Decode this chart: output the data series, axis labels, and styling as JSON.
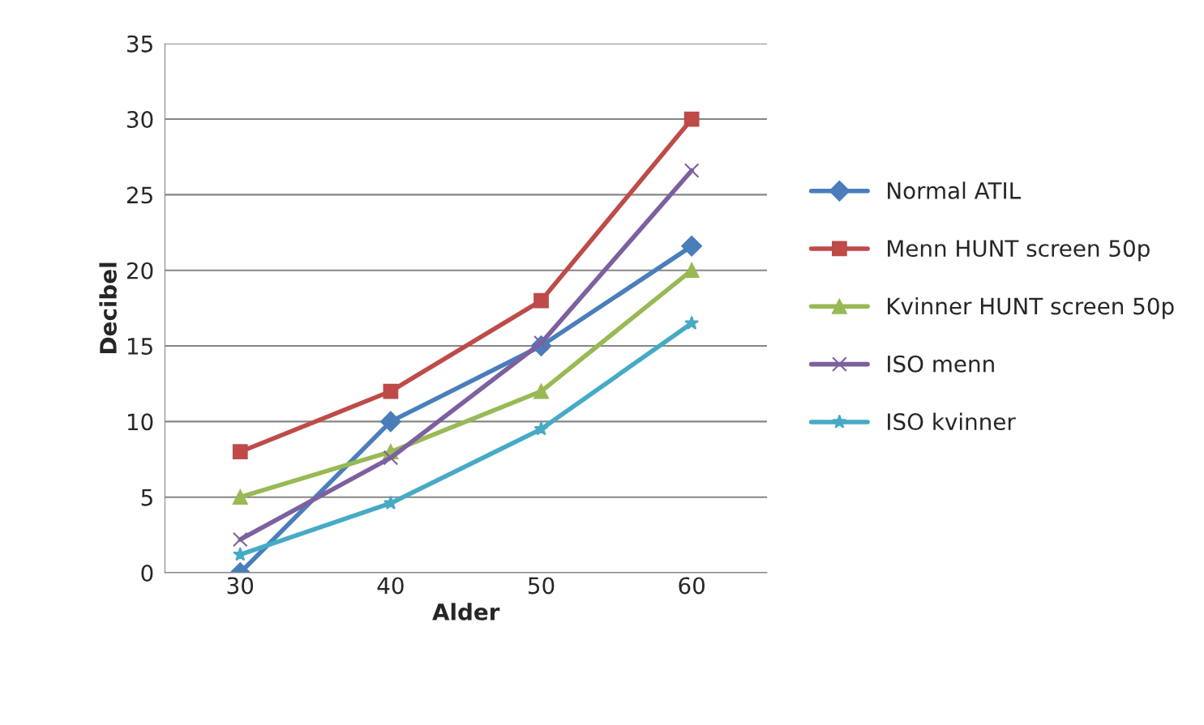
{
  "chart_data": {
    "type": "line",
    "xlabel": "Alder",
    "ylabel": "Decibel",
    "x": [
      30,
      40,
      50,
      60
    ],
    "xlim": [
      25,
      65
    ],
    "xticks": [
      30,
      40,
      50,
      60
    ],
    "ylim": [
      0,
      35
    ],
    "yticks": [
      0,
      5,
      10,
      15,
      20,
      25,
      30,
      35
    ],
    "grid": "y",
    "legend": "right",
    "line_style": "solid",
    "series": [
      {
        "name": "Normal ATIL",
        "color": "#4a7ebb",
        "marker": "diamond",
        "values": [
          0,
          10,
          15,
          21.6
        ]
      },
      {
        "name": "Menn HUNT screen 50p",
        "color": "#be4b48",
        "marker": "square",
        "values": [
          8,
          12,
          18,
          30
        ]
      },
      {
        "name": "Kvinner HUNT screen 50p",
        "color": "#98b954",
        "marker": "triangle",
        "values": [
          5,
          8,
          12,
          20
        ]
      },
      {
        "name": "ISO menn",
        "color": "#7d60a0",
        "marker": "cross",
        "values": [
          2.2,
          7.6,
          15.2,
          26.6
        ]
      },
      {
        "name": "ISO kvinner",
        "color": "#46aac5",
        "marker": "star",
        "values": [
          1.2,
          4.6,
          9.5,
          16.5
        ]
      }
    ]
  }
}
